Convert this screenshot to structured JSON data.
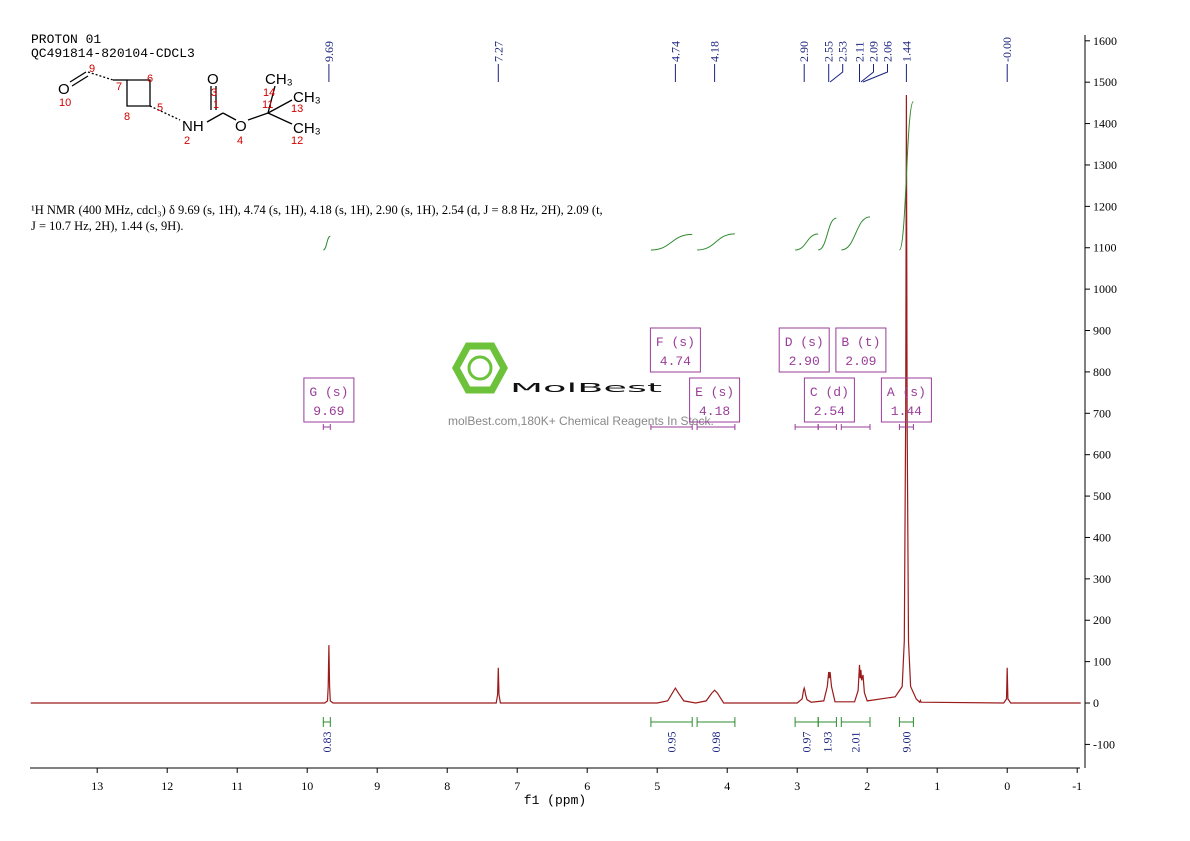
{
  "header": {
    "lines": [
      "PROTON 01",
      "QC491814-820104-CDCL3"
    ]
  },
  "structure": {
    "atoms": [
      "O",
      "O",
      "NH",
      "O",
      "CH₃",
      "CH₃",
      "CH₃"
    ],
    "numbers": [
      "9",
      "10",
      "7",
      "6",
      "5",
      "8",
      "3",
      "1",
      "2",
      "4",
      "14",
      "11",
      "13",
      "12"
    ]
  },
  "description": "¹H NMR (400 MHz, cdcl₃) δ 9.69 (s, 1H), 4.74 (s, 1H), 4.18 (s, 1H), 2.90 (s, 1H), 2.54 (d, J = 8.8 Hz, 2H), 2.09 (t, J = 10.7 Hz, 2H), 1.44 (s, 9H).",
  "watermark": {
    "brand": "MolBest",
    "tagline": "molBest.com,180K+ Chemical Reagents In Stock."
  },
  "chart_data": {
    "type": "line",
    "xlabel": "f1 (ppm)",
    "color": "#9b1b1b",
    "x": [
      13.95,
      9.75,
      9.71,
      9.7,
      9.69,
      9.68,
      9.67,
      9.63,
      7.3,
      7.28,
      7.27,
      7.26,
      7.24,
      5.0,
      4.85,
      4.78,
      4.74,
      4.7,
      4.62,
      4.45,
      4.3,
      4.22,
      4.18,
      4.14,
      4.05,
      3.0,
      2.93,
      2.91,
      2.9,
      2.89,
      2.88,
      2.86,
      2.8,
      2.62,
      2.57,
      2.55,
      2.54,
      2.53,
      2.51,
      2.46,
      2.18,
      2.13,
      2.11,
      2.1,
      2.09,
      2.08,
      2.06,
      2.04,
      2.0,
      1.6,
      1.5,
      1.47,
      1.45,
      1.44,
      1.43,
      1.41,
      1.38,
      1.3,
      1.25,
      1.24,
      1.23,
      0.05,
      0.01,
      0.0,
      -0.01,
      -0.05,
      -1.05
    ],
    "values": [
      0,
      0,
      5,
      40,
      140,
      40,
      5,
      0,
      0,
      20,
      85,
      20,
      0,
      0,
      5,
      25,
      36,
      25,
      5,
      0,
      5,
      24,
      31,
      24,
      0,
      0,
      10,
      30,
      36,
      30,
      20,
      8,
      2,
      5,
      40,
      75,
      60,
      75,
      40,
      3,
      3,
      30,
      92,
      60,
      80,
      55,
      68,
      25,
      5,
      15,
      40,
      150,
      700,
      1469,
      700,
      150,
      40,
      10,
      2,
      6,
      2,
      0,
      10,
      85,
      10,
      0,
      0
    ],
    "xlim": [
      13.96,
      -1.04
    ],
    "xticks": [
      13,
      12,
      11,
      10,
      9,
      8,
      7,
      6,
      5,
      4,
      3,
      2,
      1,
      0,
      -1
    ],
    "ylim": [
      -157,
      1614
    ],
    "yticks": [
      -100,
      0,
      100,
      200,
      300,
      400,
      500,
      600,
      700,
      800,
      900,
      1000,
      1100,
      1200,
      1300,
      1400,
      1500,
      1600
    ],
    "peak_labels": [
      9.69,
      7.27,
      4.74,
      4.18,
      {
        "value": 2.9,
        "label": "2.90"
      },
      2.55,
      2.53,
      2.11,
      2.09,
      2.06,
      1.44,
      {
        "value": 0,
        "label": "-0.00"
      }
    ],
    "integrals": {
      "ranges": [
        [
          9.77,
          9.67
        ],
        [
          5.09,
          4.5
        ],
        [
          4.43,
          3.89
        ],
        [
          3.03,
          2.7
        ],
        [
          2.7,
          2.44
        ],
        [
          2.37,
          1.96
        ],
        [
          1.54,
          1.34
        ]
      ],
      "values": [
        0.83,
        0.95,
        0.98,
        0.97,
        1.93,
        2.01,
        9
      ],
      "value_labels": [
        "0.83",
        "0.95",
        "0.98",
        "0.97",
        "1.93",
        "2.01",
        "9.00"
      ]
    },
    "multiplets": [
      {
        "label": "G (s)",
        "shift": 9.69
      },
      {
        "label": "F (s)",
        "shift": 4.74
      },
      {
        "label": "E (s)",
        "shift": 4.18
      },
      {
        "label": "D (s)",
        "shift": {
          "value": 2.9,
          "label": "2.90"
        }
      },
      {
        "label": "C (d)",
        "shift": 2.54
      },
      {
        "label": "B (t)",
        "shift": 2.09
      },
      {
        "label": "A (s)",
        "shift": 1.44
      }
    ]
  }
}
